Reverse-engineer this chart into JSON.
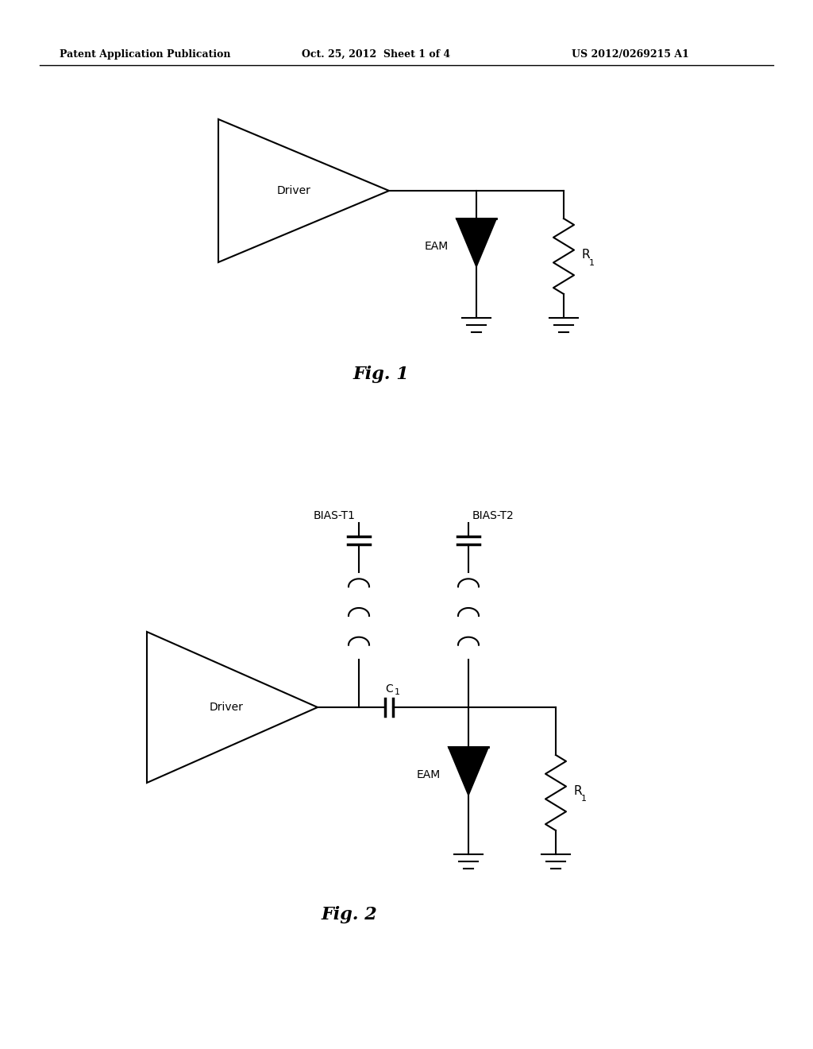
{
  "bg_color": "#ffffff",
  "line_color": "#000000",
  "header_left": "Patent Application Publication",
  "header_center": "Oct. 25, 2012  Sheet 1 of 4",
  "header_right": "US 2012/0269215 A1",
  "fig1_label": "Fig. 1",
  "fig2_label": "Fig. 2",
  "label_driver": "Driver",
  "label_eam": "EAM",
  "label_r1": "R",
  "label_r1_sub": "1",
  "label_biast1": "BIAS-T1",
  "label_biast2": "BIAS-T2",
  "label_c1": "C",
  "label_c1_sub": "1"
}
